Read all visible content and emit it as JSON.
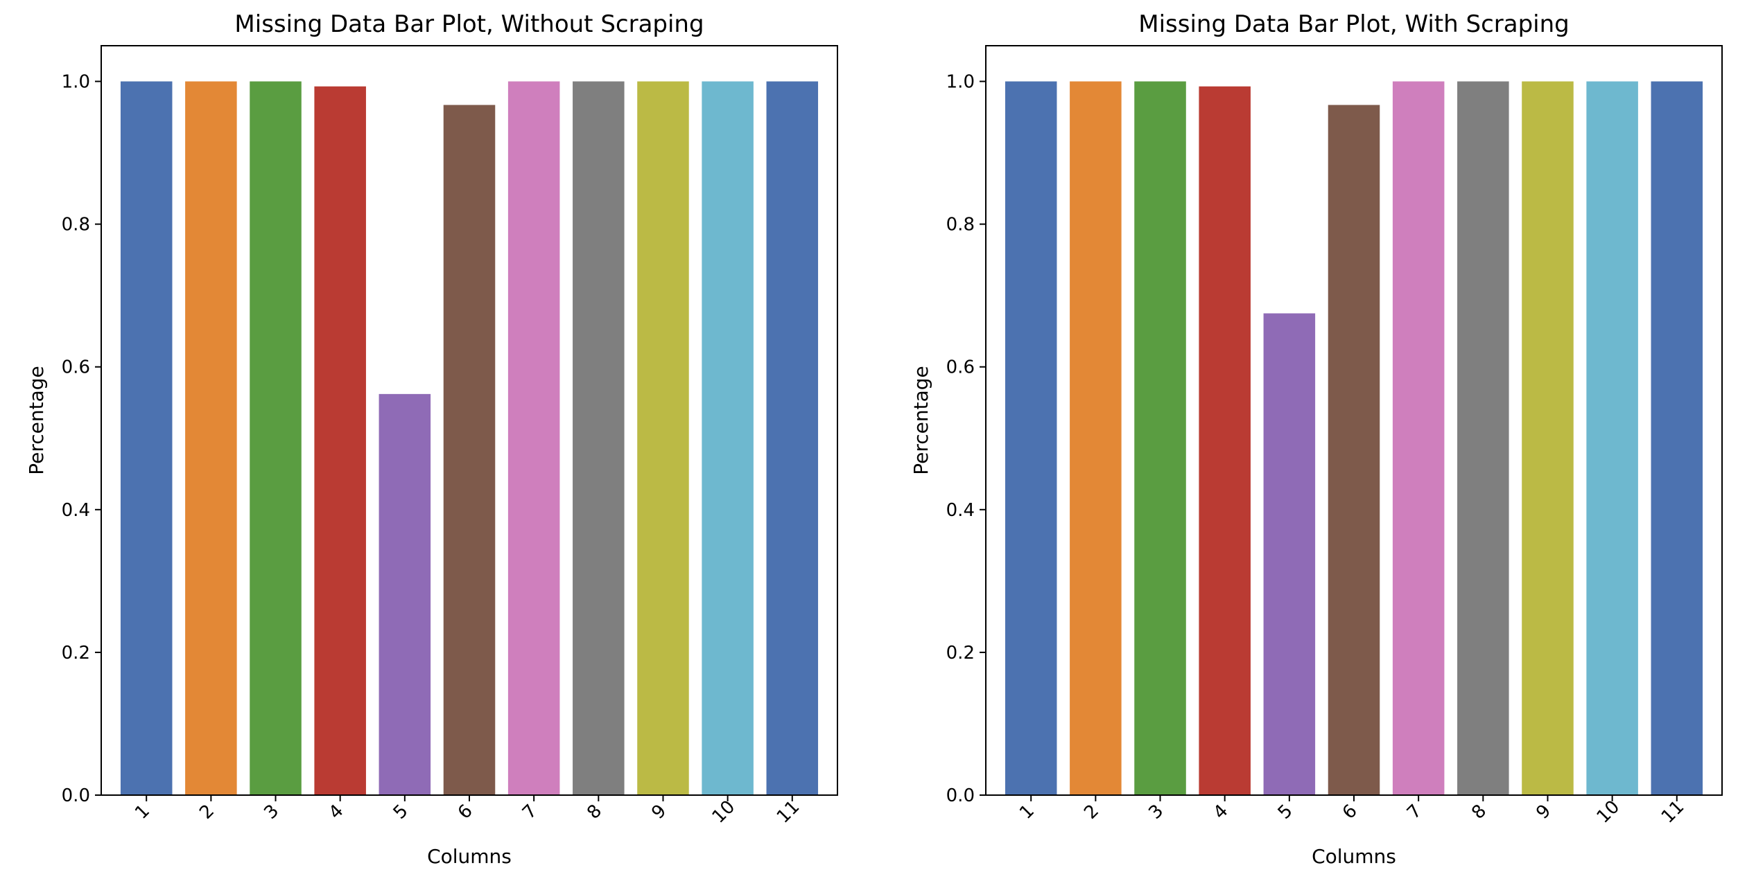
{
  "chart_data": [
    {
      "type": "bar",
      "title": "Missing Data Bar Plot, Without Scraping",
      "xlabel": "Columns",
      "ylabel": "Percentage",
      "categories": [
        "1",
        "2",
        "3",
        "4",
        "5",
        "6",
        "7",
        "8",
        "9",
        "10",
        "11"
      ],
      "values": [
        1.0,
        1.0,
        1.0,
        0.993,
        0.562,
        0.967,
        1.0,
        1.0,
        1.0,
        1.0,
        1.0
      ],
      "ylim": [
        0,
        1.05
      ],
      "yticks": [
        "0.0",
        "0.2",
        "0.4",
        "0.6",
        "0.8",
        "1.0"
      ],
      "grid": false,
      "colors": [
        "#4c72b0",
        "#e38836",
        "#5a9d41",
        "#ba3b33",
        "#8f6bb6",
        "#7e5a4b",
        "#cf7fbd",
        "#7f7f7f",
        "#bbba45",
        "#6eb8cf",
        "#4c72b0"
      ]
    },
    {
      "type": "bar",
      "title": "Missing Data Bar Plot, With Scraping",
      "xlabel": "Columns",
      "ylabel": "Percentage",
      "categories": [
        "1",
        "2",
        "3",
        "4",
        "5",
        "6",
        "7",
        "8",
        "9",
        "10",
        "11"
      ],
      "values": [
        1.0,
        1.0,
        1.0,
        0.993,
        0.675,
        0.967,
        1.0,
        1.0,
        1.0,
        1.0,
        1.0
      ],
      "ylim": [
        0,
        1.05
      ],
      "yticks": [
        "0.0",
        "0.2",
        "0.4",
        "0.6",
        "0.8",
        "1.0"
      ],
      "grid": false,
      "colors": [
        "#4c72b0",
        "#e38836",
        "#5a9d41",
        "#ba3b33",
        "#8f6bb6",
        "#7e5a4b",
        "#cf7fbd",
        "#7f7f7f",
        "#bbba45",
        "#6eb8cf",
        "#4c72b0"
      ]
    }
  ]
}
